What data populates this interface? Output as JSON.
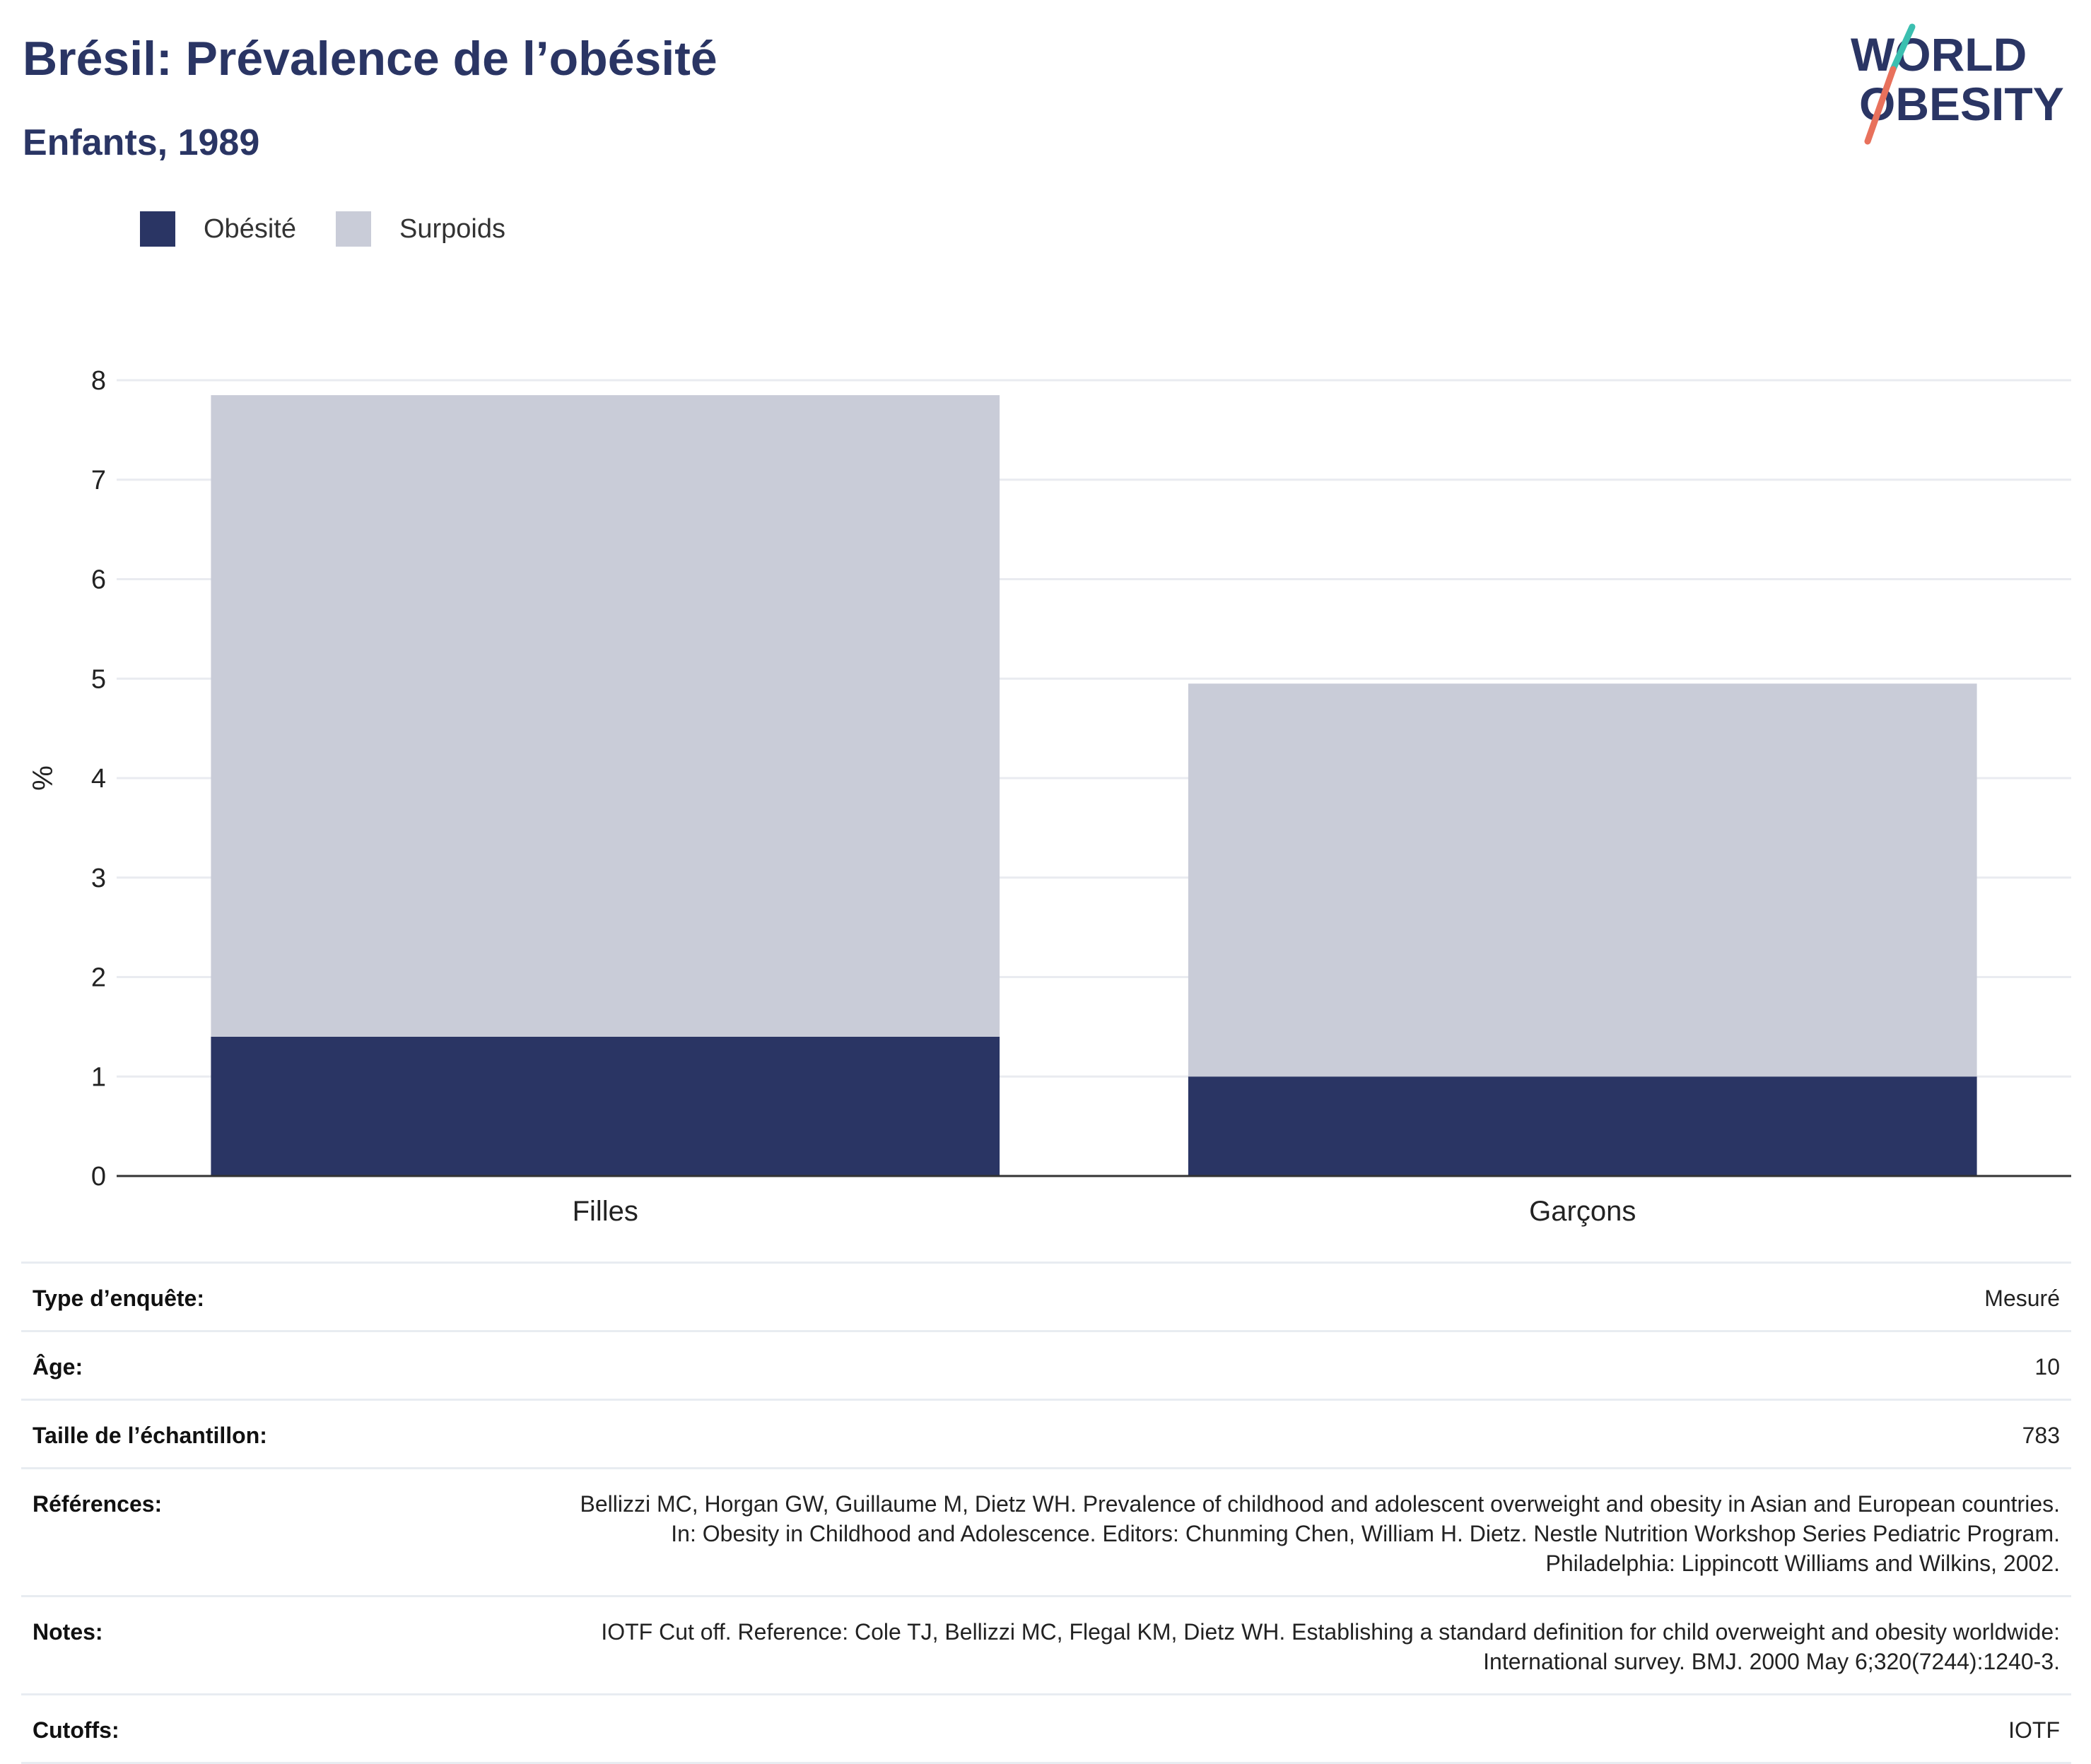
{
  "header": {
    "title": "Brésil: Prévalence de l’obésité",
    "subtitle": "Enfants, 1989"
  },
  "logo": {
    "line1": "WORLD",
    "line2": "OBESITY",
    "colors": {
      "text": "#2a3564",
      "slash_top": "#3bbfb0",
      "slash_bottom": "#e8715c"
    }
  },
  "legend": [
    {
      "label": "Obésité",
      "color": "#2a3564"
    },
    {
      "label": "Surpoids",
      "color": "#c9ccd8"
    }
  ],
  "chart_data": {
    "type": "bar",
    "stacked": true,
    "categories": [
      "Filles",
      "Garçons"
    ],
    "series": [
      {
        "name": "Obésité",
        "values": [
          1.4,
          1.0
        ],
        "color": "#2a3564"
      },
      {
        "name": "Surpoids",
        "values": [
          6.45,
          3.95
        ],
        "color": "#c9ccd8"
      }
    ],
    "ylabel": "%",
    "ylim": [
      0,
      8
    ],
    "yticks": [
      "0",
      "1",
      "2",
      "3",
      "4",
      "5",
      "6",
      "7",
      "8"
    ],
    "grid": true,
    "legend_position": "top-left"
  },
  "meta": [
    {
      "key": "Type d’enquête:",
      "value": "Mesuré"
    },
    {
      "key": "Âge:",
      "value": "10"
    },
    {
      "key": "Taille de l’échantillon:",
      "value": "783"
    },
    {
      "key": "Références:",
      "value": "Bellizzi MC, Horgan GW, Guillaume M, Dietz WH. Prevalence of childhood and adolescent overweight and obesity in Asian and European countries. In: Obesity in Childhood and Adolescence. Editors: Chunming Chen, William H. Dietz. Nestle Nutrition Workshop Series Pediatric Program. Philadelphia: Lippincott Williams and Wilkins, 2002."
    },
    {
      "key": "Notes:",
      "value": "IOTF Cut off. Reference: Cole TJ, Bellizzi MC, Flegal KM, Dietz WH. Establishing a standard definition for child overweight and obesity worldwide: International survey. BMJ. 2000 May 6;320(7244):1240-3."
    },
    {
      "key": "Cutoffs:",
      "value": "IOTF"
    }
  ]
}
